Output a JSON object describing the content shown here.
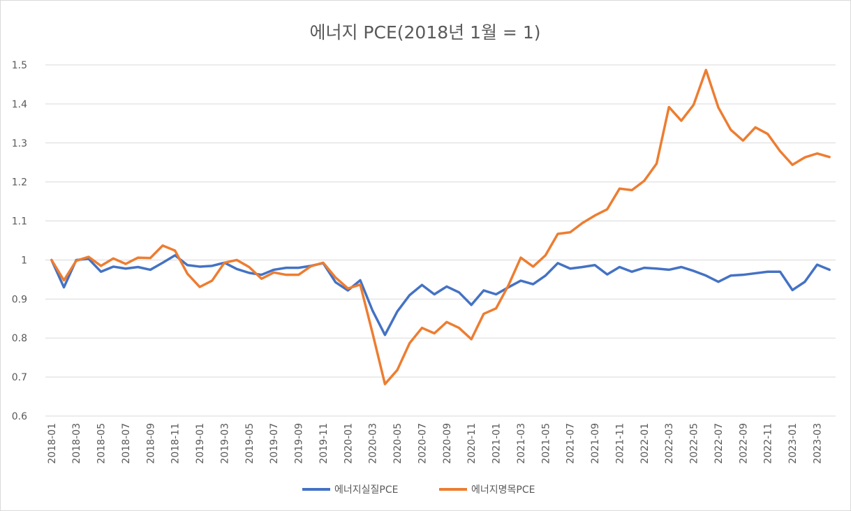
{
  "chart_data": {
    "type": "line",
    "title": "에너지 PCE(2018년 1월 = 1)",
    "xlabel": "",
    "ylabel": "",
    "ylim": [
      0.6,
      1.5
    ],
    "yticks": [
      "0.6",
      "0.7",
      "0.8",
      "0.9",
      "1",
      "1.1",
      "1.2",
      "1.3",
      "1.4",
      "1.5"
    ],
    "grid": true,
    "legend_position": "bottom",
    "categories": [
      "2018-01",
      "2018-02",
      "2018-03",
      "2018-04",
      "2018-05",
      "2018-06",
      "2018-07",
      "2018-08",
      "2018-09",
      "2018-10",
      "2018-11",
      "2018-12",
      "2019-01",
      "2019-02",
      "2019-03",
      "2019-04",
      "2019-05",
      "2019-06",
      "2019-07",
      "2019-08",
      "2019-09",
      "2019-10",
      "2019-11",
      "2019-12",
      "2020-01",
      "2020-02",
      "2020-03",
      "2020-04",
      "2020-05",
      "2020-06",
      "2020-07",
      "2020-08",
      "2020-09",
      "2020-10",
      "2020-11",
      "2020-12",
      "2021-01",
      "2021-02",
      "2021-03",
      "2021-04",
      "2021-05",
      "2021-06",
      "2021-07",
      "2021-08",
      "2021-09",
      "2021-10",
      "2021-11",
      "2021-12",
      "2022-01",
      "2022-02",
      "2022-03",
      "2022-04",
      "2022-05",
      "2022-06",
      "2022-07",
      "2022-08",
      "2022-09",
      "2022-10",
      "2022-11",
      "2022-12",
      "2023-01",
      "2023-02",
      "2023-03",
      "2023-04"
    ],
    "tick_labels": [
      "2018-01",
      "2018-03",
      "2018-05",
      "2018-07",
      "2018-09",
      "2018-11",
      "2019-01",
      "2019-03",
      "2019-05",
      "2019-07",
      "2019-09",
      "2019-11",
      "2020-01",
      "2020-03",
      "2020-05",
      "2020-07",
      "2020-09",
      "2020-11",
      "2021-01",
      "2021-03",
      "2021-05",
      "2021-07",
      "2021-09",
      "2021-11",
      "2022-01",
      "2022-03",
      "2022-05",
      "2022-07",
      "2022-09",
      "2022-11",
      "2023-01",
      "2023-03"
    ],
    "series": [
      {
        "name": "에너지실질PCE",
        "color": "#4472c4",
        "values": [
          1.0,
          0.93,
          1.0,
          1.003,
          0.97,
          0.983,
          0.978,
          0.982,
          0.975,
          0.993,
          1.012,
          0.987,
          0.983,
          0.985,
          0.993,
          0.977,
          0.967,
          0.962,
          0.975,
          0.98,
          0.98,
          0.985,
          0.992,
          0.943,
          0.922,
          0.948,
          0.87,
          0.808,
          0.868,
          0.91,
          0.936,
          0.912,
          0.932,
          0.917,
          0.885,
          0.922,
          0.912,
          0.93,
          0.947,
          0.938,
          0.96,
          0.992,
          0.978,
          0.982,
          0.987,
          0.963,
          0.982,
          0.97,
          0.98,
          0.978,
          0.975,
          0.982,
          0.972,
          0.96,
          0.944,
          0.96,
          0.962,
          0.966,
          0.97,
          0.97,
          0.923,
          0.944,
          0.988,
          0.975
        ]
      },
      {
        "name": "에너지명목PCE",
        "color": "#ed7d31",
        "values": [
          1.0,
          0.948,
          0.998,
          1.008,
          0.985,
          1.004,
          0.99,
          1.006,
          1.005,
          1.037,
          1.024,
          0.965,
          0.931,
          0.947,
          0.993,
          1.0,
          0.982,
          0.952,
          0.968,
          0.962,
          0.962,
          0.984,
          0.993,
          0.955,
          0.927,
          0.937,
          0.812,
          0.682,
          0.718,
          0.787,
          0.826,
          0.812,
          0.841,
          0.826,
          0.797,
          0.862,
          0.876,
          0.935,
          1.006,
          0.983,
          1.012,
          1.067,
          1.071,
          1.095,
          1.114,
          1.13,
          1.183,
          1.179,
          1.203,
          1.247,
          1.392,
          1.357,
          1.398,
          1.487,
          1.391,
          1.334,
          1.306,
          1.34,
          1.323,
          1.279,
          1.244,
          1.263,
          1.273,
          1.264
        ]
      }
    ]
  }
}
